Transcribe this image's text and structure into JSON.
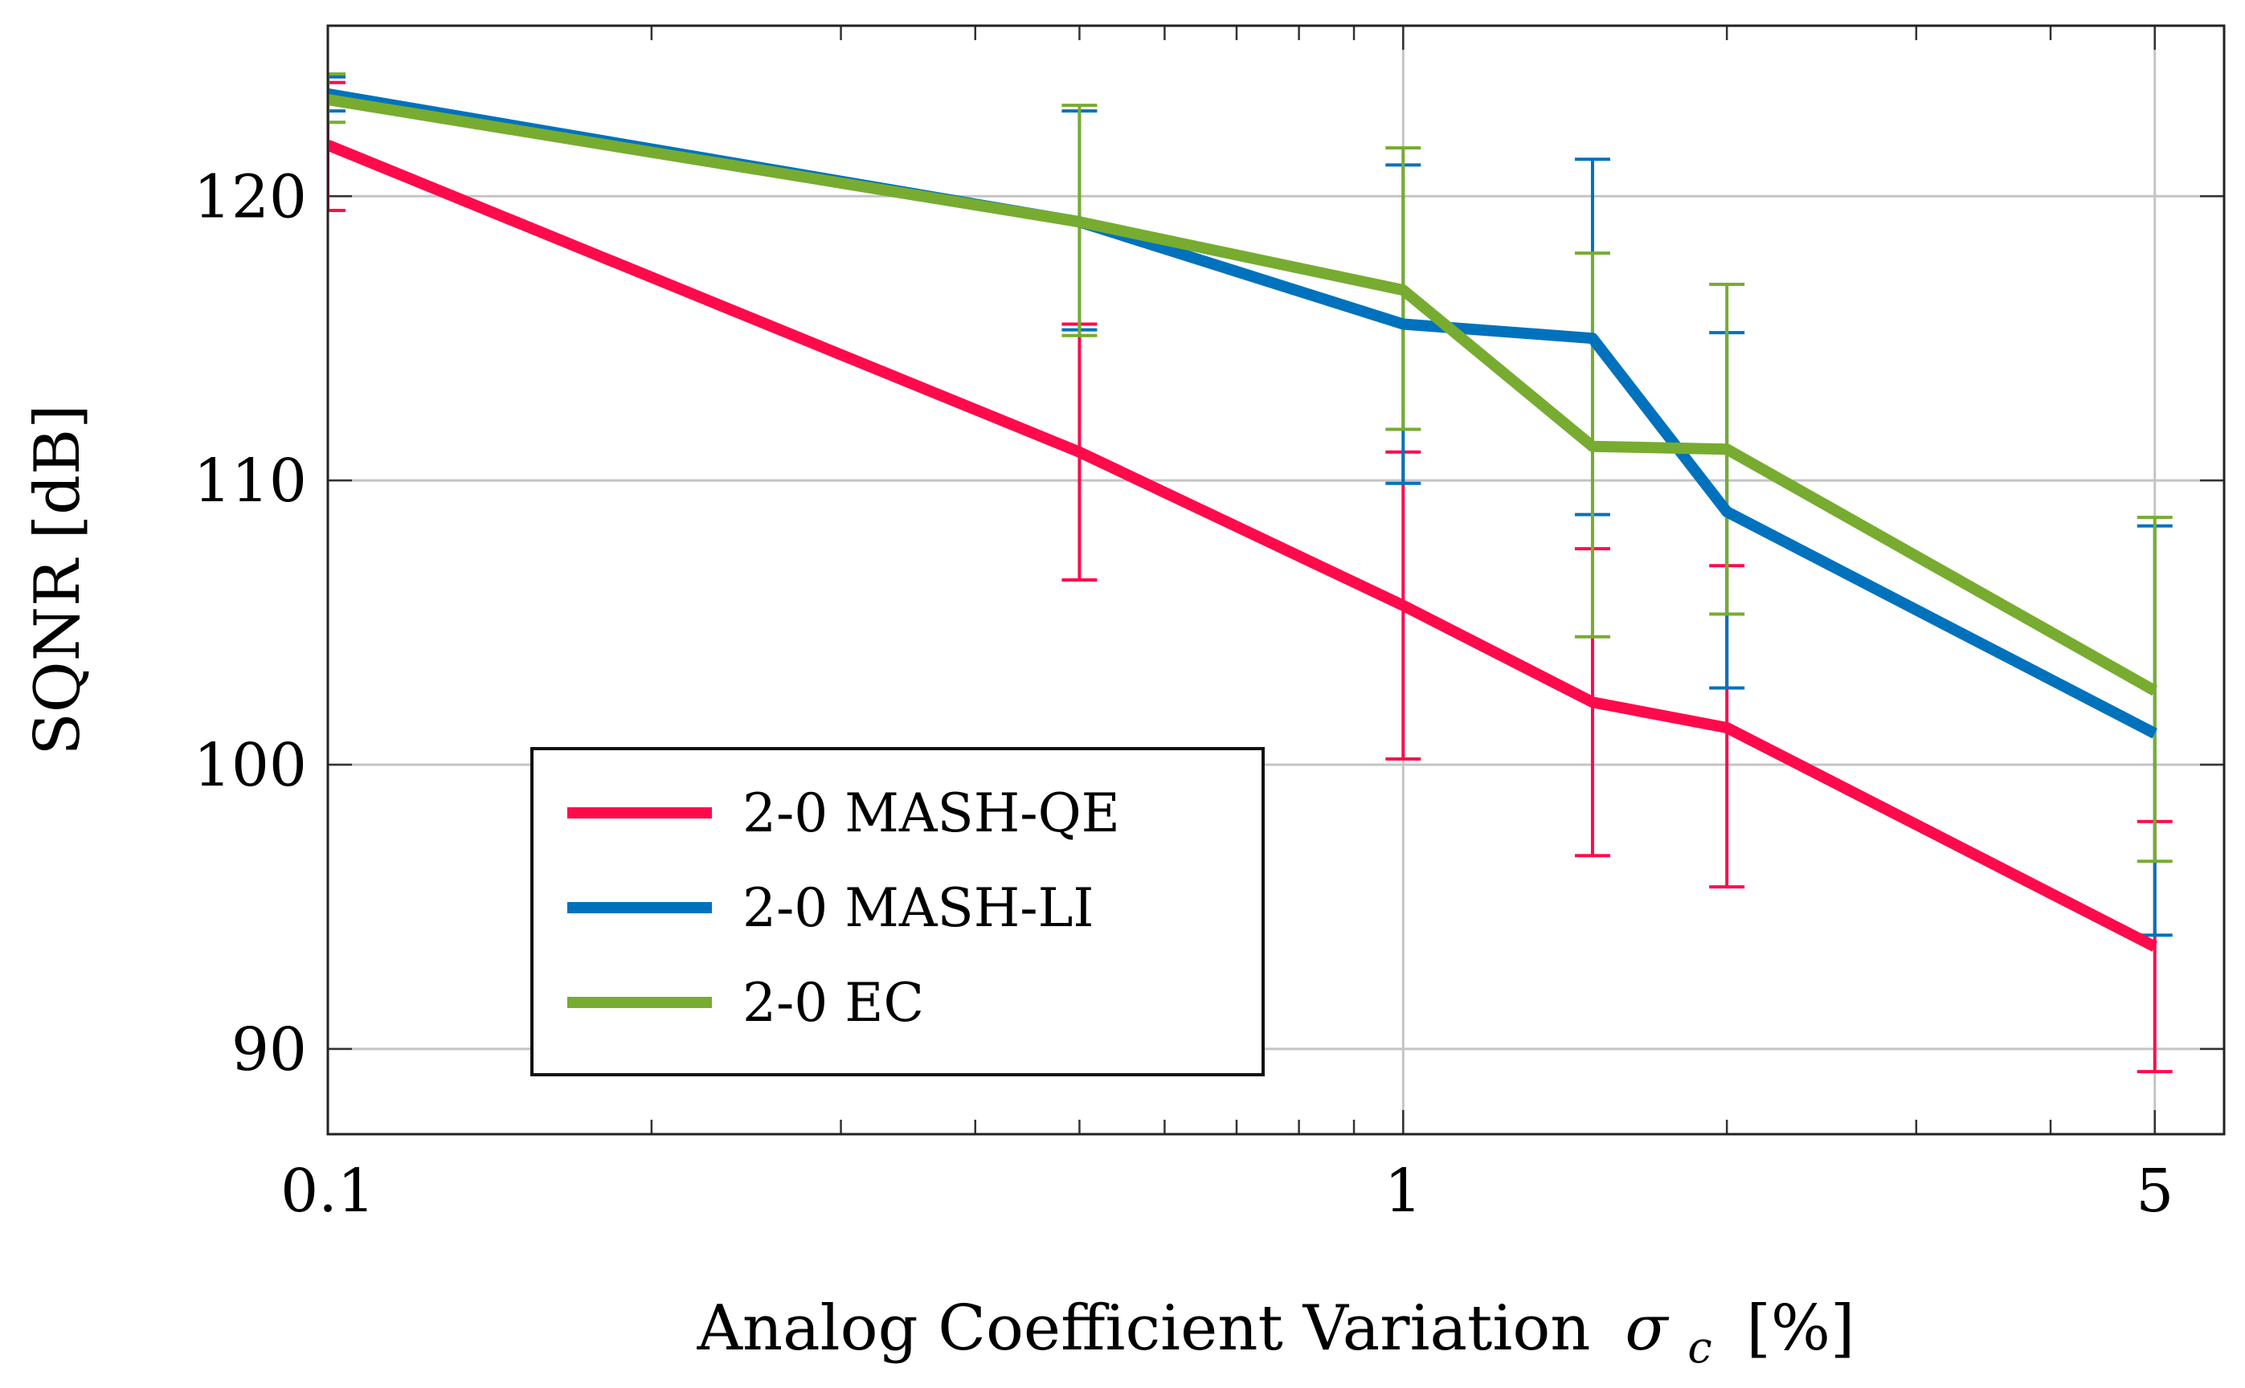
{
  "chart_data": {
    "type": "line",
    "xscale": "log",
    "xlim": [
      0.1,
      5.8
    ],
    "ylim": [
      87,
      126
    ],
    "xlabel": "Analog Coefficient Variation",
    "xlabel_symbol": "σ",
    "xlabel_subscript": "c",
    "xlabel_unit": "[%]",
    "ylabel": "SQNR [dB]",
    "x_ticks": [
      0.1,
      1,
      5
    ],
    "x_tick_labels": [
      "0.1",
      "1",
      "5"
    ],
    "y_ticks": [
      90,
      100,
      110,
      120
    ],
    "y_tick_labels": [
      "90",
      "100",
      "110",
      "120"
    ],
    "grid": true,
    "legend_position": "bottom-left",
    "x": [
      0.1,
      0.5,
      1,
      1.5,
      2,
      5
    ],
    "series": [
      {
        "name": "2-0 MASH-QE",
        "color": "#ff0a4b",
        "values": [
          121.8,
          111.0,
          105.6,
          102.2,
          101.3,
          93.6
        ],
        "err_low": [
          119.5,
          106.5,
          100.2,
          96.8,
          95.7,
          89.2
        ],
        "err_high": [
          124.0,
          115.5,
          111.0,
          107.6,
          107.0,
          98.0
        ]
      },
      {
        "name": "2-0 MASH-LI",
        "color": "#0072bd",
        "values": [
          123.6,
          119.1,
          115.5,
          115.0,
          108.9,
          101.1
        ],
        "err_low": [
          123.0,
          115.3,
          109.9,
          108.8,
          102.7,
          94.0
        ],
        "err_high": [
          124.2,
          123.0,
          121.1,
          121.3,
          115.2,
          108.4
        ]
      },
      {
        "name": "2-0 EC",
        "color": "#77ac30",
        "values": [
          123.4,
          119.1,
          116.7,
          111.2,
          111.1,
          102.6
        ],
        "err_low": [
          122.6,
          115.1,
          111.8,
          104.5,
          105.3,
          96.6
        ],
        "err_high": [
          124.3,
          123.2,
          121.7,
          118.0,
          116.9,
          108.7
        ]
      }
    ]
  }
}
